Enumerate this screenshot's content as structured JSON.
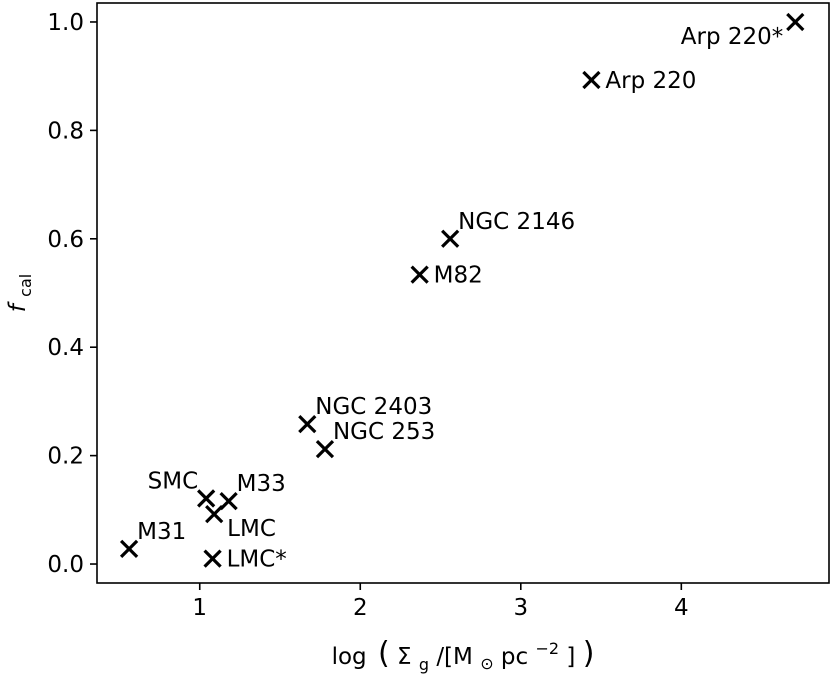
{
  "chart_data": {
    "type": "scatter",
    "xlabel": "log (Σg/[M⊙pc⁻²])",
    "xlabel_parts": {
      "func": "log",
      "sigma": "Σ",
      "sigma_sub": "g",
      "mid": "/[M",
      "sun": "⊙",
      "unit": "pc",
      "exp": "−2",
      "close": "]"
    },
    "ylabel": "fcal",
    "ylabel_parts": {
      "main": "f",
      "sub": "cal"
    },
    "xlim": [
      0.36,
      4.92
    ],
    "ylim": [
      -0.035,
      1.035
    ],
    "xticks": [
      1,
      2,
      3,
      4
    ],
    "yticks": [
      0.0,
      0.2,
      0.4,
      0.6,
      0.8,
      1.0
    ],
    "grid": false,
    "legend": "none",
    "marker": "x",
    "color": "#000000",
    "points": [
      {
        "label": "M31",
        "x": 0.56,
        "y": 0.028,
        "label_pos": "above-right"
      },
      {
        "label": "SMC",
        "x": 1.04,
        "y": 0.121,
        "label_pos": "above-left"
      },
      {
        "label": "M33",
        "x": 1.18,
        "y": 0.116,
        "label_pos": "above-right"
      },
      {
        "label": "LMC",
        "x": 1.09,
        "y": 0.092,
        "label_pos": "below-right"
      },
      {
        "label": "LMC*",
        "x": 1.08,
        "y": 0.01,
        "label_pos": "right"
      },
      {
        "label": "NGC 2403",
        "x": 1.67,
        "y": 0.258,
        "label_pos": "above-right"
      },
      {
        "label": "NGC 253",
        "x": 1.78,
        "y": 0.212,
        "label_pos": "above-right"
      },
      {
        "label": "M82",
        "x": 2.37,
        "y": 0.534,
        "label_pos": "right"
      },
      {
        "label": "NGC 2146",
        "x": 2.56,
        "y": 0.6,
        "label_pos": "above-right"
      },
      {
        "label": "Arp 220",
        "x": 3.44,
        "y": 0.893,
        "label_pos": "right"
      },
      {
        "label": "Arp 220*",
        "x": 4.71,
        "y": 1.0,
        "label_pos": "below-left"
      }
    ]
  }
}
